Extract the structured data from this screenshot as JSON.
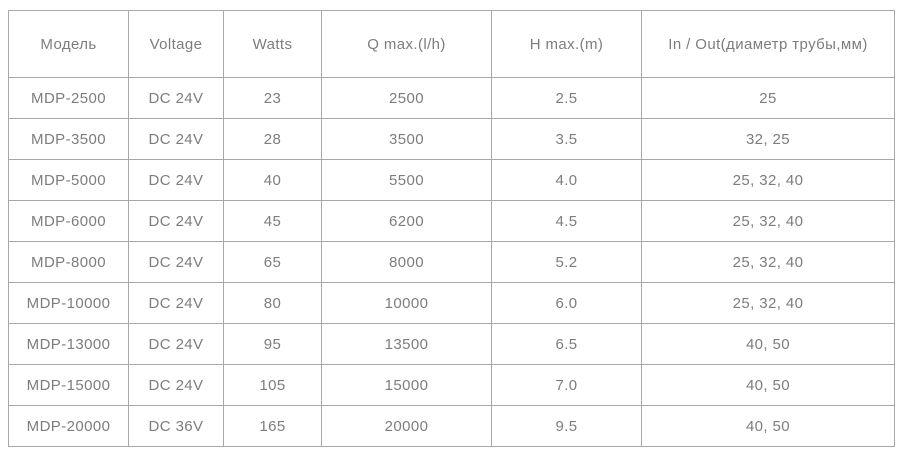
{
  "table": {
    "columns": [
      {
        "label": "Модель"
      },
      {
        "label": "Voltage"
      },
      {
        "label": "Watts"
      },
      {
        "label": "Q max.(l/h)"
      },
      {
        "label": "H max.(m)"
      },
      {
        "label": "In / Out(диаметр трубы,мм)"
      }
    ],
    "rows": [
      {
        "model": "MDP-2500",
        "voltage": "DC 24V",
        "watts": "23",
        "q_max": "2500",
        "h_max": "2.5",
        "in_out": "25"
      },
      {
        "model": "MDP-3500",
        "voltage": "DC 24V",
        "watts": "28",
        "q_max": "3500",
        "h_max": "3.5",
        "in_out": "32, 25"
      },
      {
        "model": "MDP-5000",
        "voltage": "DC 24V",
        "watts": "40",
        "q_max": "5500",
        "h_max": "4.0",
        "in_out": "25, 32, 40"
      },
      {
        "model": "MDP-6000",
        "voltage": "DC 24V",
        "watts": "45",
        "q_max": "6200",
        "h_max": "4.5",
        "in_out": "25, 32, 40"
      },
      {
        "model": "MDP-8000",
        "voltage": "DC 24V",
        "watts": "65",
        "q_max": "8000",
        "h_max": "5.2",
        "in_out": "25, 32, 40"
      },
      {
        "model": "MDP-10000",
        "voltage": "DC 24V",
        "watts": "80",
        "q_max": "10000",
        "h_max": "6.0",
        "in_out": "25, 32, 40"
      },
      {
        "model": "MDP-13000",
        "voltage": "DC 24V",
        "watts": "95",
        "q_max": "13500",
        "h_max": "6.5",
        "in_out": "40, 50"
      },
      {
        "model": "MDP-15000",
        "voltage": "DC 24V",
        "watts": "105",
        "q_max": "15000",
        "h_max": "7.0",
        "in_out": "40, 50"
      },
      {
        "model": "MDP-20000",
        "voltage": "DC 36V",
        "watts": "165",
        "q_max": "20000",
        "h_max": "9.5",
        "in_out": "40, 50"
      }
    ],
    "colors": {
      "border": "#a8a8a8",
      "text": "#7d7d7d",
      "background": "#ffffff"
    }
  }
}
